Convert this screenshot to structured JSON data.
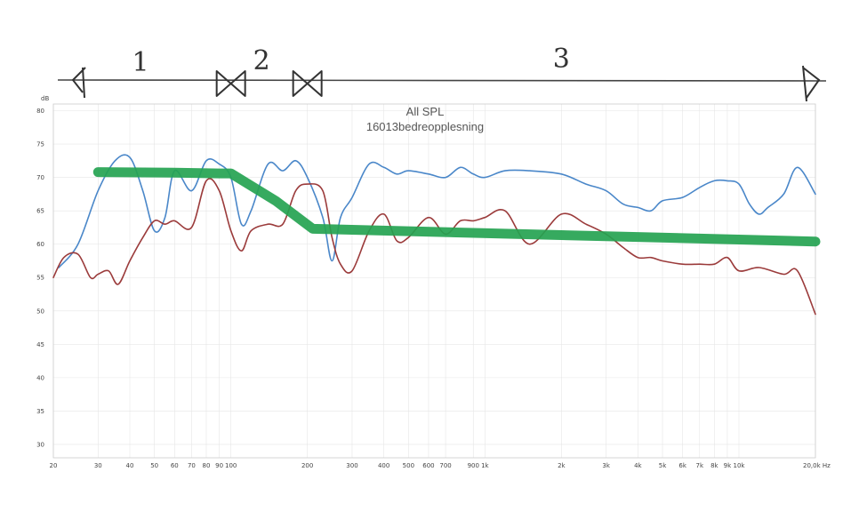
{
  "chart_data": {
    "type": "line",
    "title": "All SPL",
    "subtitle": "16013bedreopplesning",
    "ylabel": "dB",
    "x_scale": "log",
    "xlim": [
      20,
      20000
    ],
    "ylim": [
      28,
      81
    ],
    "grid": true,
    "x_ticks": [
      {
        "v": 20,
        "label": "20"
      },
      {
        "v": 30,
        "label": "30"
      },
      {
        "v": 40,
        "label": "40"
      },
      {
        "v": 50,
        "label": "50"
      },
      {
        "v": 60,
        "label": "60"
      },
      {
        "v": 70,
        "label": "70"
      },
      {
        "v": 80,
        "label": "80"
      },
      {
        "v": 90,
        "label": "90"
      },
      {
        "v": 100,
        "label": "100"
      },
      {
        "v": 200,
        "label": "200"
      },
      {
        "v": 300,
        "label": "300"
      },
      {
        "v": 400,
        "label": "400"
      },
      {
        "v": 500,
        "label": "500"
      },
      {
        "v": 600,
        "label": "600"
      },
      {
        "v": 700,
        "label": "700"
      },
      {
        "v": 900,
        "label": "900"
      },
      {
        "v": 1000,
        "label": "1k"
      },
      {
        "v": 2000,
        "label": "2k"
      },
      {
        "v": 3000,
        "label": "3k"
      },
      {
        "v": 4000,
        "label": "4k"
      },
      {
        "v": 5000,
        "label": "5k"
      },
      {
        "v": 6000,
        "label": "6k"
      },
      {
        "v": 7000,
        "label": "7k"
      },
      {
        "v": 8000,
        "label": "8k"
      },
      {
        "v": 9000,
        "label": "9k"
      },
      {
        "v": 10000,
        "label": "10k"
      },
      {
        "v": 20000,
        "label": "20,0k Hz"
      }
    ],
    "y_ticks": [
      30,
      35,
      40,
      45,
      50,
      55,
      60,
      65,
      70,
      75,
      80
    ],
    "series": [
      {
        "color": "#4a87c9",
        "x": [
          21,
          25,
          30,
          35,
          40,
          45,
          50,
          55,
          60,
          70,
          80,
          90,
          100,
          110,
          120,
          140,
          160,
          180,
          200,
          230,
          250,
          270,
          300,
          350,
          400,
          450,
          500,
          600,
          700,
          800,
          900,
          1000,
          1200,
          1500,
          2000,
          2500,
          3000,
          3500,
          4000,
          4500,
          5000,
          6000,
          7000,
          8000,
          9000,
          10000,
          11000,
          12000,
          13000,
          15000,
          17000,
          20000
        ],
        "y": [
          56.5,
          60,
          68,
          72.5,
          73,
          68,
          62,
          64,
          71,
          68,
          72.5,
          72,
          70,
          63,
          65,
          72,
          71,
          72.5,
          70,
          64,
          57.5,
          64,
          67,
          72,
          71.5,
          70.5,
          71,
          70.5,
          70,
          71.5,
          70.5,
          70,
          71,
          71,
          70.5,
          69,
          68,
          66,
          65.5,
          65,
          66.5,
          67,
          68.5,
          69.5,
          69.5,
          69,
          66,
          64.5,
          65.5,
          67.5,
          71.5,
          67.5
        ]
      },
      {
        "color": "#9b3b3b",
        "x": [
          20,
          22,
          25,
          28,
          30,
          33,
          36,
          40,
          45,
          50,
          55,
          60,
          70,
          80,
          90,
          100,
          110,
          120,
          140,
          160,
          180,
          200,
          230,
          250,
          270,
          300,
          350,
          400,
          450,
          500,
          600,
          700,
          800,
          900,
          1000,
          1200,
          1500,
          2000,
          2500,
          3000,
          3500,
          4000,
          4500,
          5000,
          6000,
          7000,
          8000,
          9000,
          10000,
          12000,
          15000,
          17000,
          20000
        ],
        "y": [
          55,
          58,
          58.5,
          55,
          55.5,
          56,
          54,
          57.5,
          61,
          63.5,
          63,
          63.5,
          62.5,
          69.5,
          68,
          62,
          59,
          62,
          63,
          63,
          68,
          69,
          68,
          61,
          57,
          56,
          62,
          64.5,
          60.5,
          61,
          64,
          61.5,
          63.5,
          63.5,
          64,
          65,
          60,
          64.5,
          63,
          61.5,
          59.5,
          58,
          58,
          57.5,
          57,
          57,
          57,
          58,
          56,
          56.5,
          55.5,
          56,
          49.5
        ]
      },
      {
        "color": "#25a351",
        "x": [
          30,
          60,
          90,
          100,
          150,
          210,
          20000
        ],
        "y": [
          70.8,
          70.7,
          70.6,
          70.6,
          66.5,
          62.3,
          60.4
        ]
      }
    ],
    "annotations": {
      "labels": [
        {
          "text": "1",
          "v": 40
        },
        {
          "text": "2",
          "v": 132
        },
        {
          "text": "3",
          "v": 2000
        }
      ],
      "markers": [
        20,
        100,
        200,
        20000
      ]
    }
  }
}
